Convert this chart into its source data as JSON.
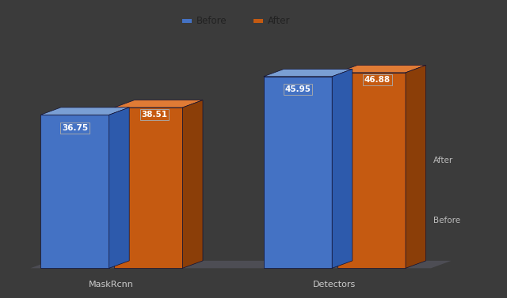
{
  "background_color": "#3b3b3b",
  "categories": [
    "MaskRcnn",
    "Detectors"
  ],
  "before_values": [
    36.75,
    45.95
  ],
  "after_values": [
    38.51,
    46.88
  ],
  "before_color_front": "#4472c4",
  "before_color_top": "#7a9fd4",
  "before_color_side": "#2d5aac",
  "after_color_front": "#c55a11",
  "after_color_top": "#e07b35",
  "after_color_side": "#8b3e08",
  "ground_color": "#555560",
  "label_before": "Before",
  "label_after": "After",
  "label_box_color_before": "#4472c4",
  "label_box_color_after": "#c55a11",
  "xlabel_labels": [
    "MaskRcnn",
    "Detectors"
  ],
  "side_label_after": "After",
  "side_label_before": "Before",
  "legend_marker_before": "#4472c4",
  "legend_marker_after": "#c55a11",
  "legend_bg": "#3b3b3b"
}
